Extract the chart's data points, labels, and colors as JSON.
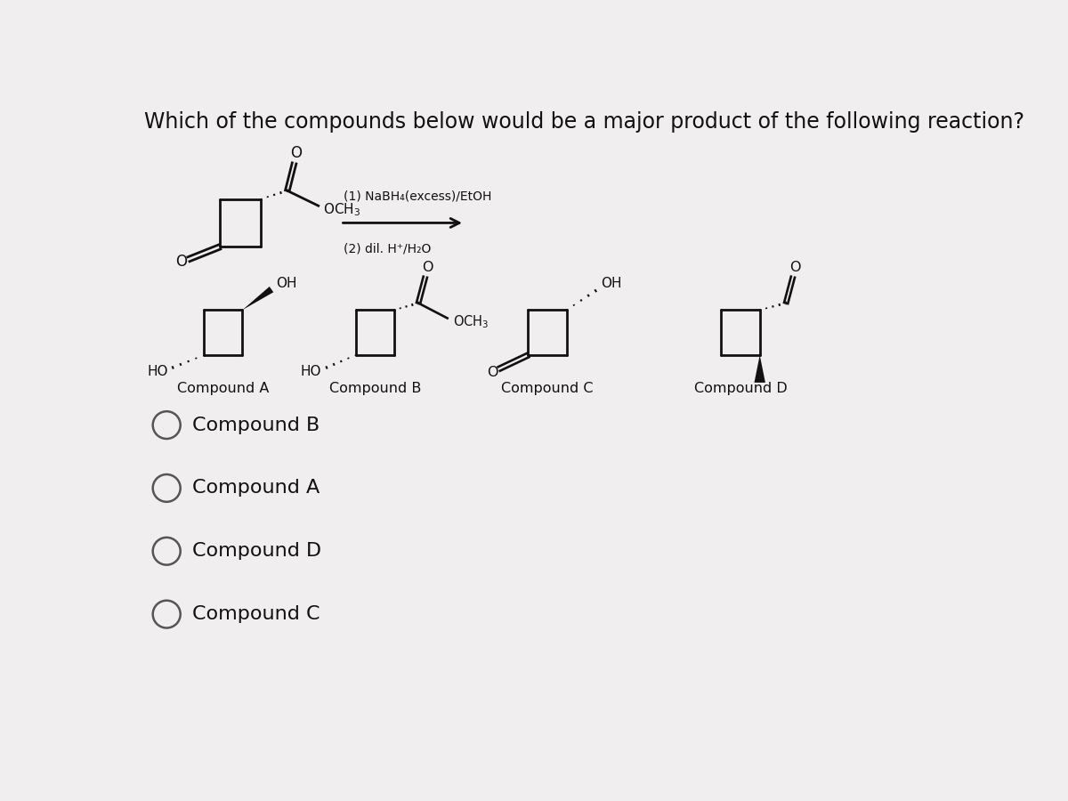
{
  "title": "Which of the compounds below would be a major product of the following reaction?",
  "title_fontsize": 17,
  "background_color": "#f0eeee",
  "reaction_step1": "(1) NaBH₄(excess)/EtOH",
  "reaction_step2": "(2) dil. H⁺/H₂O",
  "compound_labels": [
    "Compound A",
    "Compound B",
    "Compound C",
    "Compound D"
  ],
  "answer_choices": [
    "Compound B",
    "Compound A",
    "Compound D",
    "Compound C"
  ],
  "text_color": "#111111",
  "line_color": "#111111",
  "circle_color": "#555555"
}
